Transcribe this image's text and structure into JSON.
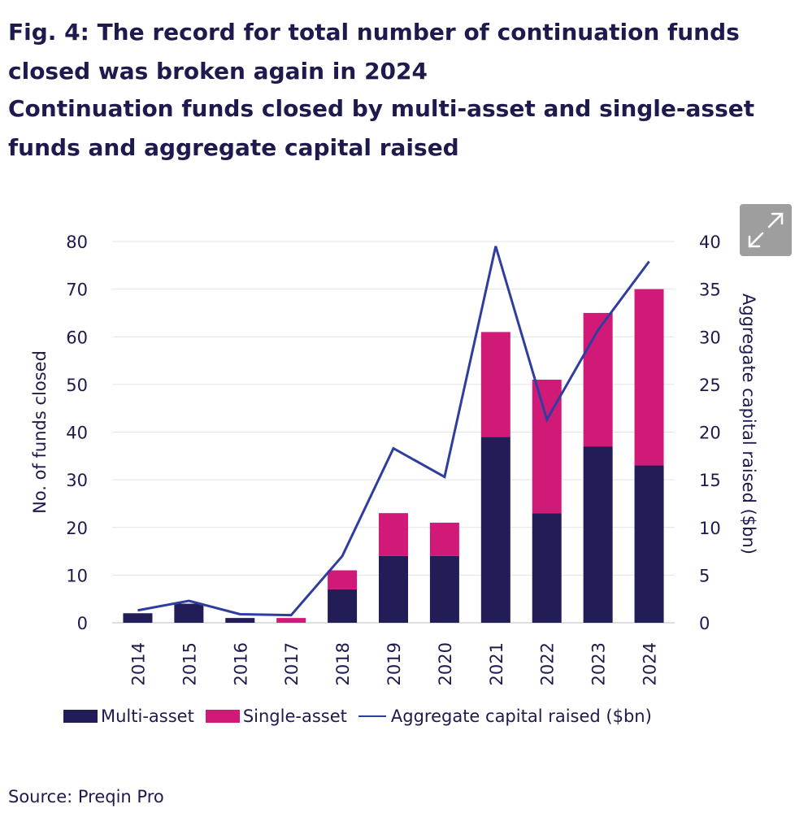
{
  "title": "Fig. 4: The record for total number of continuation funds closed was broken again in 2024",
  "subtitle": "Continuation funds closed by multi-asset and single-asset funds and aggregate capital raised",
  "source": "Source: Preqin Pro",
  "colors": {
    "multi_asset": "#221c57",
    "single_asset": "#d11a78",
    "line": "#2f3e9e",
    "text": "#1e1a4d"
  },
  "expand_icon": "expand-icon",
  "chart_data": {
    "type": "bar",
    "categories": [
      "2014",
      "2015",
      "2016",
      "2017",
      "2018",
      "2019",
      "2020",
      "2021",
      "2022",
      "2023",
      "2024"
    ],
    "series": [
      {
        "name": "Multi-asset",
        "type": "bar",
        "axis": "left",
        "stacked": true,
        "values": [
          2,
          4,
          1,
          0,
          7,
          14,
          14,
          39,
          23,
          37,
          33
        ]
      },
      {
        "name": "Single-asset",
        "type": "bar",
        "axis": "left",
        "stacked": true,
        "values": [
          0,
          0,
          0,
          1,
          4,
          9,
          7,
          22,
          28,
          28,
          37
        ]
      },
      {
        "name": "Aggregate capital raised ($bn)",
        "type": "line",
        "axis": "right",
        "values": [
          1.3,
          2.3,
          0.9,
          0.8,
          7.0,
          18.3,
          15.3,
          39.5,
          21.3,
          30.7,
          37.9
        ]
      }
    ],
    "ylabel": "No. of funds closed",
    "y2label": "Aggregate capital raised ($bn)",
    "ylim": [
      0,
      80
    ],
    "y2lim": [
      0,
      40
    ],
    "yticks": [
      "0",
      "10",
      "20",
      "30",
      "40",
      "50",
      "60",
      "70",
      "80"
    ],
    "y2ticks": [
      "0",
      "5",
      "10",
      "15",
      "20",
      "25",
      "30",
      "35",
      "40"
    ],
    "grid": true,
    "legend_position": "bottom"
  }
}
